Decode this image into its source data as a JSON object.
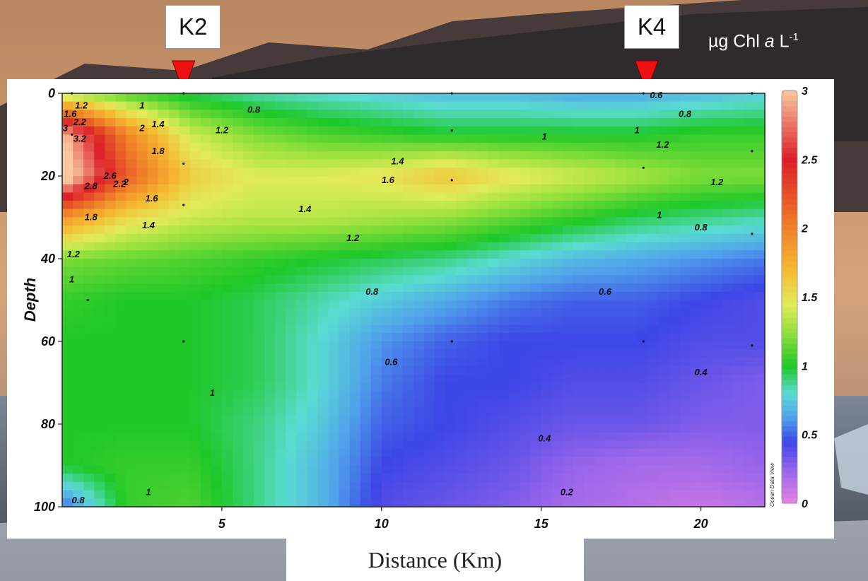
{
  "stations": [
    {
      "label": "K2",
      "distance": 3.8
    },
    {
      "label": "K4",
      "distance": 18.3
    }
  ],
  "unit_label": {
    "prefix": "µg Chl ",
    "italic": "a",
    "suffix": " L",
    "superscript": "-1"
  },
  "watermark": "Ocean Data View",
  "colors": {
    "marker": "#ee1111"
  },
  "chart_data": {
    "type": "heatmap",
    "title": "",
    "xlabel": "Distance (Km)",
    "ylabel": "Depth",
    "xlim": [
      0,
      22
    ],
    "ylim": [
      0,
      100
    ],
    "y_inverted": true,
    "x_ticks": [
      5,
      10,
      15,
      20
    ],
    "y_ticks": [
      0,
      20,
      40,
      60,
      80,
      100
    ],
    "colorbar": {
      "ticks": [
        0,
        0.5,
        1,
        1.5,
        2,
        2.5,
        3
      ],
      "range": [
        0,
        3
      ],
      "position": "right"
    },
    "x": [
      0,
      2,
      4,
      6,
      8,
      10,
      12,
      14,
      16,
      18,
      20,
      22
    ],
    "y": [
      0,
      10,
      20,
      30,
      40,
      50,
      60,
      70,
      80,
      90,
      100
    ],
    "z": [
      [
        1.3,
        1.1,
        0.95,
        0.85,
        0.8,
        0.75,
        0.7,
        0.7,
        0.65,
        0.65,
        0.7,
        0.75
      ],
      [
        3.0,
        2.0,
        1.4,
        1.2,
        1.1,
        1.05,
        1.0,
        1.0,
        1.0,
        1.0,
        1.05,
        1.05
      ],
      [
        3.2,
        2.2,
        1.6,
        1.45,
        1.45,
        1.5,
        1.65,
        1.5,
        1.4,
        1.3,
        1.2,
        1.2
      ],
      [
        1.9,
        1.55,
        1.4,
        1.35,
        1.35,
        1.3,
        1.25,
        1.15,
        1.05,
        0.95,
        0.9,
        0.85
      ],
      [
        1.2,
        1.15,
        1.1,
        1.05,
        1.0,
        0.95,
        0.9,
        0.8,
        0.7,
        0.65,
        0.6,
        0.55
      ],
      [
        1.05,
        1.0,
        1.0,
        0.95,
        0.85,
        0.75,
        0.65,
        0.55,
        0.5,
        0.5,
        0.45,
        0.4
      ],
      [
        1.0,
        1.0,
        1.0,
        0.95,
        0.8,
        0.6,
        0.5,
        0.45,
        0.45,
        0.45,
        0.4,
        0.4
      ],
      [
        1.0,
        1.0,
        1.0,
        0.95,
        0.8,
        0.55,
        0.45,
        0.45,
        0.4,
        0.4,
        0.35,
        0.3
      ],
      [
        1.0,
        1.0,
        1.0,
        0.9,
        0.75,
        0.5,
        0.45,
        0.4,
        0.35,
        0.35,
        0.3,
        0.3
      ],
      [
        1.0,
        1.05,
        1.05,
        0.9,
        0.7,
        0.45,
        0.4,
        0.35,
        0.25,
        0.2,
        0.2,
        0.25
      ],
      [
        0.5,
        1.05,
        1.1,
        0.9,
        0.7,
        0.4,
        0.35,
        0.3,
        0.2,
        0.15,
        0.1,
        0.15
      ]
    ],
    "contour_labels": [
      {
        "text": "1.2",
        "x": 0.6,
        "y": 3
      },
      {
        "text": "1.6",
        "x": 0.25,
        "y": 5
      },
      {
        "text": "2.2",
        "x": 0.55,
        "y": 7
      },
      {
        "text": "3.2",
        "x": 0.55,
        "y": 11
      },
      {
        "text": "3",
        "x": 0.1,
        "y": 8.5
      },
      {
        "text": "1",
        "x": 2.5,
        "y": 3
      },
      {
        "text": "2",
        "x": 2.5,
        "y": 8.5
      },
      {
        "text": "1.4",
        "x": 3.0,
        "y": 7.5
      },
      {
        "text": "1.8",
        "x": 3.0,
        "y": 14
      },
      {
        "text": "0.8",
        "x": 6.0,
        "y": 4
      },
      {
        "text": "1.2",
        "x": 5.0,
        "y": 9
      },
      {
        "text": "2.8",
        "x": 0.9,
        "y": 22.5
      },
      {
        "text": "2.6",
        "x": 1.5,
        "y": 20
      },
      {
        "text": "2.2",
        "x": 1.8,
        "y": 22
      },
      {
        "text": "2",
        "x": 2.0,
        "y": 21.5
      },
      {
        "text": "1.6",
        "x": 2.8,
        "y": 25.5
      },
      {
        "text": "1.8",
        "x": 0.9,
        "y": 30
      },
      {
        "text": "1.4",
        "x": 2.7,
        "y": 32
      },
      {
        "text": "1.4",
        "x": 7.6,
        "y": 28
      },
      {
        "text": "1.4",
        "x": 10.5,
        "y": 16.5
      },
      {
        "text": "1.6",
        "x": 10.2,
        "y": 21
      },
      {
        "text": "1.2",
        "x": 9.1,
        "y": 35
      },
      {
        "text": "1.2",
        "x": 0.35,
        "y": 39
      },
      {
        "text": "1",
        "x": 0.3,
        "y": 45
      },
      {
        "text": "0.8",
        "x": 9.7,
        "y": 48
      },
      {
        "text": "0.6",
        "x": 10.3,
        "y": 65
      },
      {
        "text": "1",
        "x": 4.7,
        "y": 72.5
      },
      {
        "text": "1",
        "x": 15.1,
        "y": 10.5
      },
      {
        "text": "1",
        "x": 18.0,
        "y": 9
      },
      {
        "text": "0.6",
        "x": 18.6,
        "y": 0.5
      },
      {
        "text": "0.8",
        "x": 19.5,
        "y": 5
      },
      {
        "text": "1.2",
        "x": 18.8,
        "y": 12.5
      },
      {
        "text": "1.2",
        "x": 20.5,
        "y": 21.5
      },
      {
        "text": "1",
        "x": 18.7,
        "y": 29.5
      },
      {
        "text": "0.8",
        "x": 20.0,
        "y": 32.5
      },
      {
        "text": "0.6",
        "x": 17.0,
        "y": 48
      },
      {
        "text": "0.4",
        "x": 20.0,
        "y": 67.5
      },
      {
        "text": "0.4",
        "x": 15.1,
        "y": 83.5
      },
      {
        "text": "0.2",
        "x": 15.8,
        "y": 96.5
      },
      {
        "text": "1",
        "x": 2.7,
        "y": 96.5
      },
      {
        "text": "0.8",
        "x": 0.5,
        "y": 98.5
      }
    ],
    "sample_points": [
      {
        "x": 0.3,
        "y": 0
      },
      {
        "x": 3.8,
        "y": 0
      },
      {
        "x": 12.2,
        "y": 0
      },
      {
        "x": 18.2,
        "y": 0
      },
      {
        "x": 21.6,
        "y": 0
      },
      {
        "x": 0.3,
        "y": 10
      },
      {
        "x": 12.2,
        "y": 9
      },
      {
        "x": 21.6,
        "y": 14
      },
      {
        "x": 3.8,
        "y": 17
      },
      {
        "x": 18.2,
        "y": 18
      },
      {
        "x": 12.2,
        "y": 21
      },
      {
        "x": 3.8,
        "y": 27
      },
      {
        "x": 21.6,
        "y": 34
      },
      {
        "x": 0.8,
        "y": 50
      },
      {
        "x": 3.8,
        "y": 60
      },
      {
        "x": 12.2,
        "y": 60
      },
      {
        "x": 18.2,
        "y": 60
      },
      {
        "x": 21.6,
        "y": 61
      }
    ]
  }
}
